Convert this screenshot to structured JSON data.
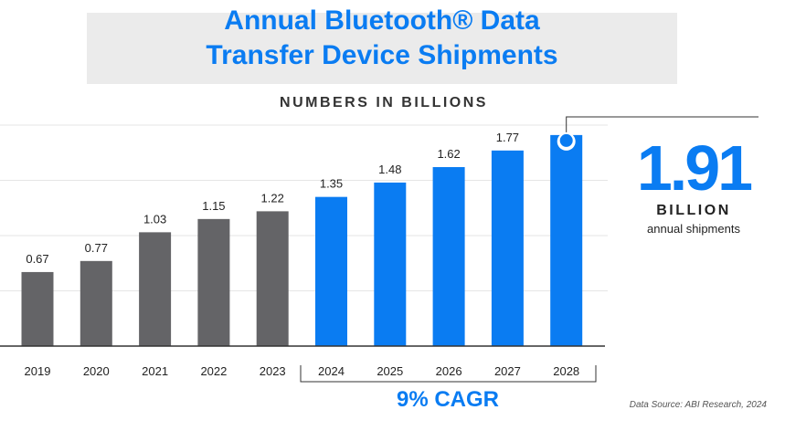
{
  "chart_data": {
    "type": "bar",
    "title": "Annual Bluetooth® Data Transfer Device Shipments",
    "subtitle": "NUMBERS IN BILLIONS",
    "categories": [
      "2019",
      "2020",
      "2021",
      "2022",
      "2023",
      "2024",
      "2025",
      "2026",
      "2027",
      "2028"
    ],
    "values": [
      0.67,
      0.77,
      1.03,
      1.15,
      1.22,
      1.35,
      1.48,
      1.62,
      1.77,
      1.91
    ],
    "data_labels": [
      "0.67",
      "0.77",
      "1.03",
      "1.15",
      "1.22",
      "1.35",
      "1.48",
      "1.62",
      "1.77",
      ""
    ],
    "ylim": [
      0,
      2
    ],
    "gridlines": [
      0.5,
      1.0,
      1.5,
      2.0
    ],
    "grid": true,
    "colors": {
      "historical": "#646467",
      "forecast": "#0a7cf2",
      "accent": "#0a7cf2"
    },
    "forecast_start": "2024",
    "callout": {
      "value": "1.91",
      "unit": "BILLION",
      "caption": "annual shipments"
    },
    "annotation": "9% CAGR",
    "source": "Data Source: ABI Research, 2024"
  }
}
